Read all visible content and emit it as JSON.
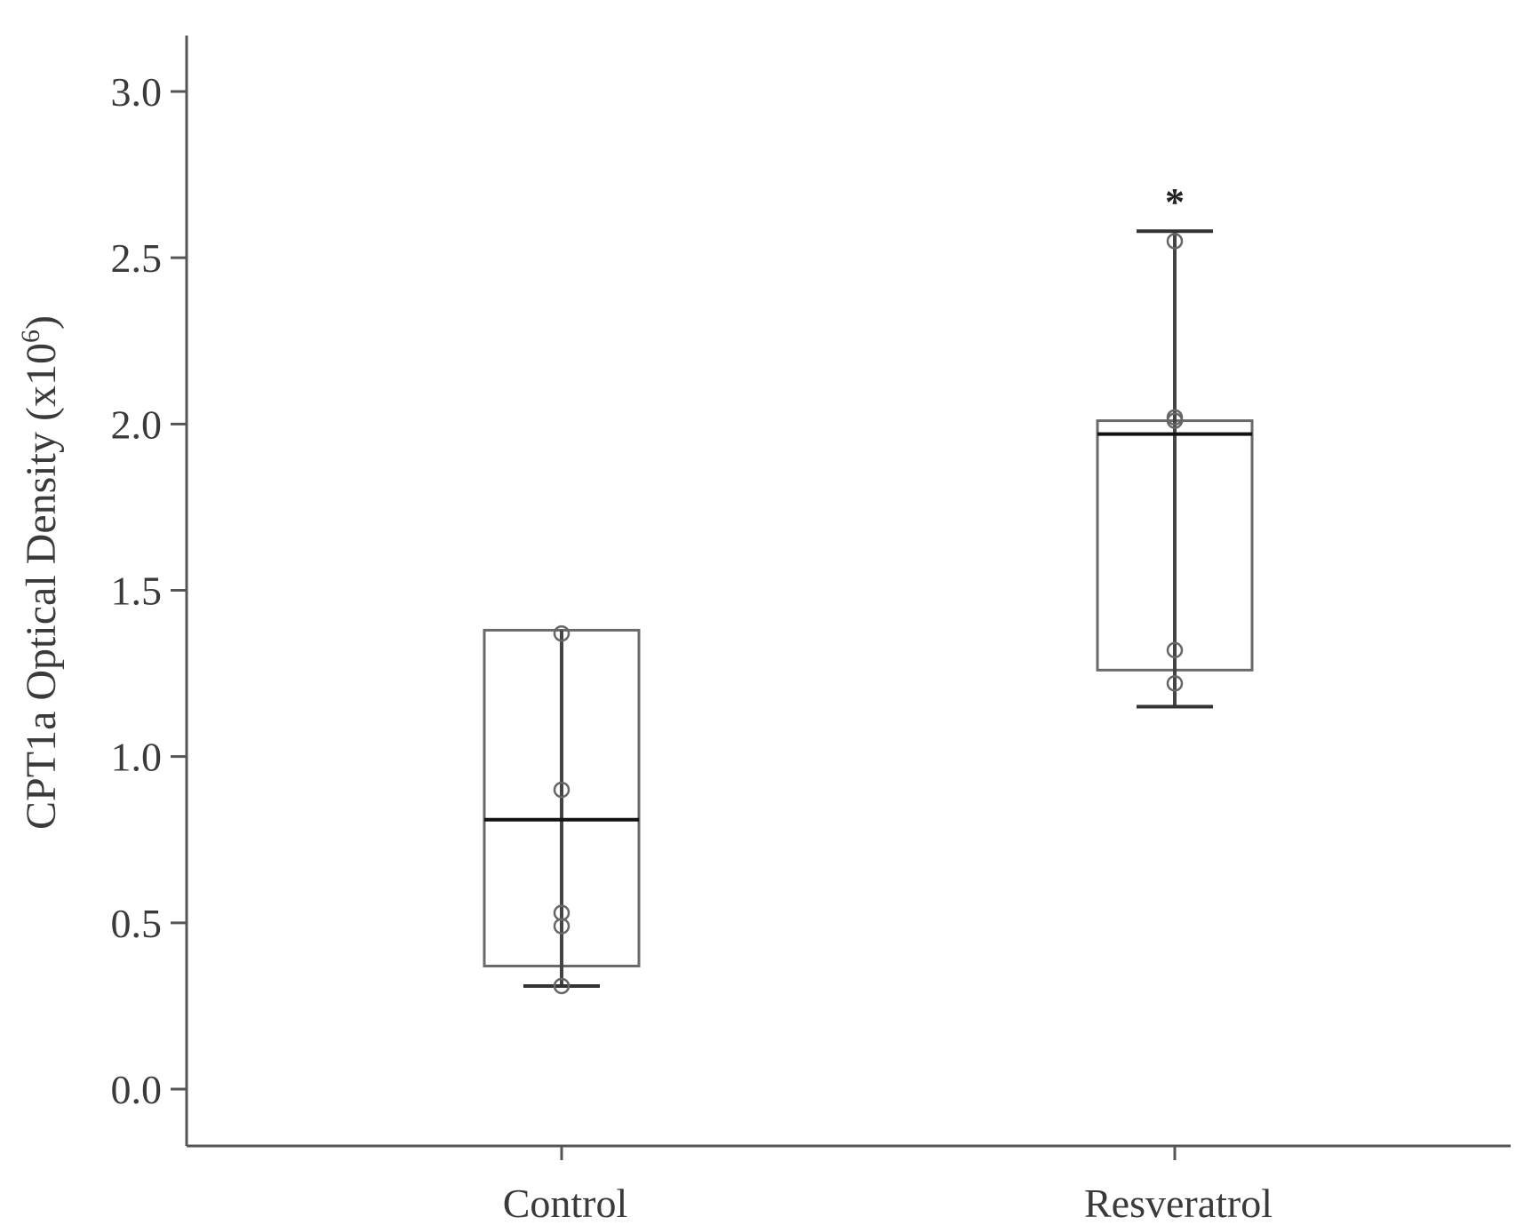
{
  "chart_data": {
    "type": "box",
    "title": "",
    "xlabel": "",
    "ylabel": "CPT1a  Optical Density (x10",
    "ylabel_superscript": "6",
    "ylabel_close": ")",
    "ylim": [
      -0.15,
      3.15
    ],
    "yticks": [
      0.0,
      0.5,
      1.0,
      1.5,
      2.0,
      2.5,
      3.0
    ],
    "ytick_labels": [
      "0.0",
      "0.5",
      "1.0",
      "1.5",
      "2.0",
      "2.5",
      "3.0"
    ],
    "categories": [
      "Control",
      "Resveratrol"
    ],
    "grid": false,
    "boxes": [
      {
        "category": "Control",
        "whisker_low": 0.31,
        "q1": 0.37,
        "median": 0.81,
        "q3": 1.38,
        "whisker_high": 1.38,
        "points": [
          0.31,
          0.49,
          0.53,
          0.9,
          1.37
        ],
        "annotation": ""
      },
      {
        "category": "Resveratrol",
        "whisker_low": 1.15,
        "q1": 1.26,
        "median": 1.97,
        "q3": 2.01,
        "whisker_high": 2.58,
        "points": [
          1.22,
          1.32,
          2.01,
          2.02,
          2.55
        ],
        "annotation": "*"
      }
    ]
  }
}
